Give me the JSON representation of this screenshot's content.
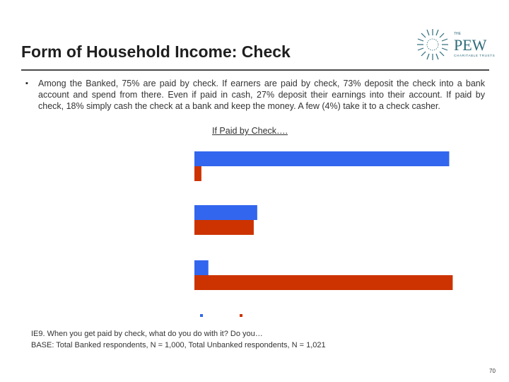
{
  "slide": {
    "title": "Form of Household Income: Check",
    "bullet_text": "Among the Banked, 75% are paid by check.  If earners are paid by check, 73% deposit the check into a bank account and spend from there.  Even if paid in cash, 27% deposit their earnings into their account.  If paid by check, 18% simply cash the check at a bank and keep the money.  A few (4%) take it to a check casher.",
    "subtitle": "If Paid by Check….",
    "footnote_question": "IE9.  When you get paid by check, what do you do with it?  Do you…",
    "footnote_base": "BASE:  Total Banked respondents, N = 1,000, Total Unbanked respondents, N = 1,021",
    "page_number": "70"
  },
  "logo": {
    "small_text": "THE",
    "name": "PEW",
    "tagline": "CHARITABLE TRUSTS"
  },
  "chart_data": {
    "type": "bar",
    "orientation": "horizontal",
    "categories": [
      "",
      "",
      ""
    ],
    "series": [
      {
        "name": "",
        "color": "#3366ee",
        "values": [
          73,
          18,
          4
        ]
      },
      {
        "name": "",
        "color": "#cc3300",
        "values": [
          2,
          17,
          74
        ]
      }
    ],
    "xlim": [
      0,
      80
    ],
    "legend_position": "bottom",
    "title": "",
    "xlabel": "",
    "ylabel": ""
  },
  "colors": {
    "banked": "#3366ee",
    "unbanked": "#cc3300",
    "logo": "#2e6b7a"
  }
}
